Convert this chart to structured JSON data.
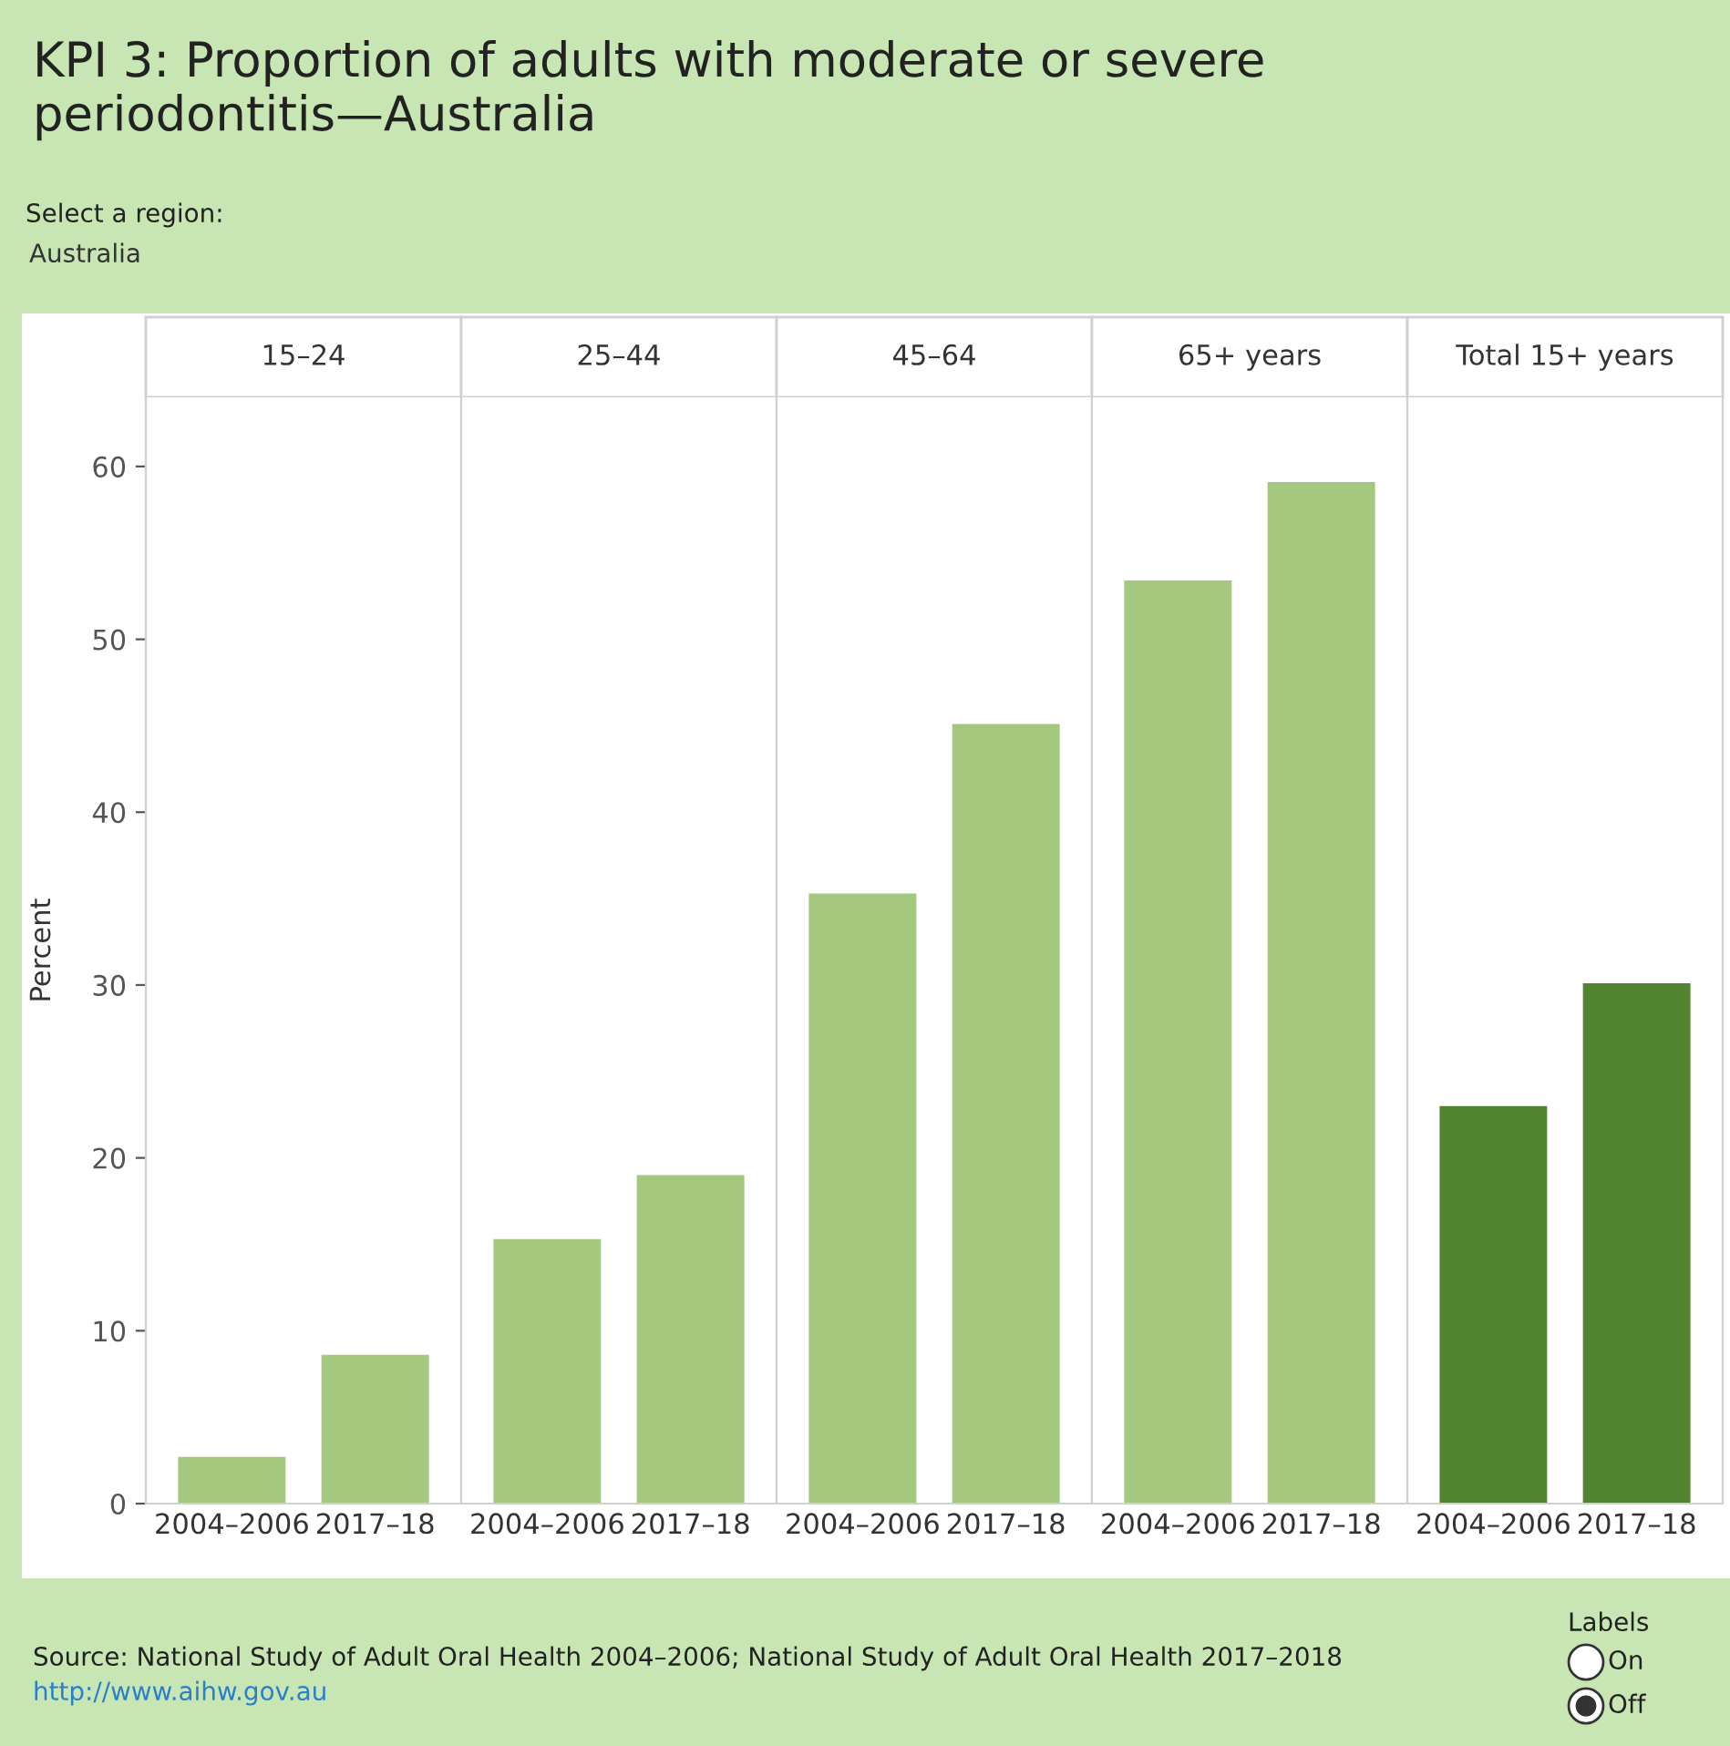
{
  "chart_data": [
    {
      "type": "bar",
      "title": "KPI 3: Proportion of adults with moderate or severe periodontitis—Australia",
      "subtitle": "15–24",
      "ylabel": "Percent",
      "categories": [
        "2004–2006",
        "2017–18"
      ],
      "values": [
        2.7,
        8.6
      ],
      "colors": [
        "#a3c87e",
        "#a3c87e"
      ],
      "ylim": [
        0,
        64
      ],
      "yticks": [
        0,
        10,
        20,
        30,
        40,
        50,
        60
      ],
      "grid": false,
      "annotations": [
        "Select a region:",
        "Australia",
        "Source: National Study of Adult Oral Health 2004–2006; National Study of Adult Oral Health 2017–2018",
        "http://www.aihw.gov.au",
        "Labels",
        "On",
        "Off"
      ]
    },
    {
      "type": "bar",
      "subtitle": "25–44",
      "categories": [
        "2004–2006",
        "2017–18"
      ],
      "values": [
        15.3,
        19.0
      ],
      "colors": [
        "#a3c87e",
        "#a3c87e"
      ],
      "ylim": [
        0,
        64
      ],
      "tick_labels": "x",
      "grid": false
    },
    {
      "type": "bar",
      "subtitle": "45–64",
      "categories": [
        "2004–2006",
        "2017–18"
      ],
      "values": [
        35.3,
        45.1
      ],
      "colors": [
        "#a3c87e",
        "#a3c87e"
      ],
      "ylim": [
        0,
        64
      ],
      "tick_labels": "x",
      "grid": false
    },
    {
      "type": "bar",
      "subtitle": "65+ years",
      "categories": [
        "2004–2006",
        "2017–18"
      ],
      "values": [
        53.4,
        59.1
      ],
      "colors": [
        "#a3c87e",
        "#a3c87e"
      ],
      "ylim": [
        0,
        64
      ],
      "tick_labels": "x",
      "grid": false
    },
    {
      "type": "bar",
      "subtitle": "Total 15+ years",
      "categories": [
        "2004–2006",
        "2017–18"
      ],
      "values": [
        23.0,
        30.1
      ],
      "colors": [
        "#528330",
        "#528330"
      ],
      "ylim": [
        0,
        64
      ],
      "tick_labels": "x",
      "grid": false
    }
  ]
}
